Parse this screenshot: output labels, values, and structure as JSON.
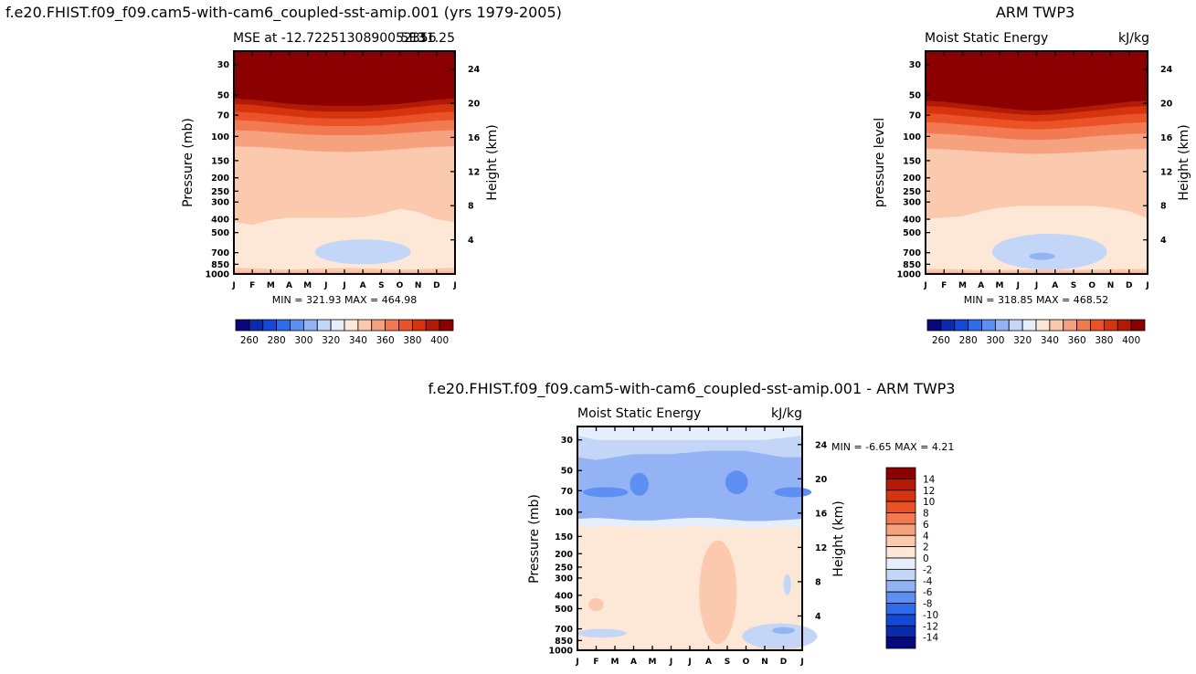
{
  "colors": {
    "mse_palette": [
      "#08087a",
      "#0a2ab0",
      "#1448d8",
      "#2f6cec",
      "#5e8ff2",
      "#93b3f4",
      "#c3d6f8",
      "#e6eefb",
      "#fde7d7",
      "#fbc9ae",
      "#f7a27e",
      "#f27a52",
      "#ec5228",
      "#d6340f",
      "#b21a05",
      "#8b0000"
    ],
    "diff_palette": [
      "#08087a",
      "#0a2ab0",
      "#1448d8",
      "#2f6cec",
      "#5e8ff2",
      "#93b3f4",
      "#c3d6f8",
      "#e6eefb",
      "#fde7d7",
      "#fbc9ae",
      "#f7a27e",
      "#f27a52",
      "#ec5228",
      "#d6340f",
      "#b21a05",
      "#8b0000"
    ]
  },
  "main_title": "f.e20.FHIST.f09_f09.cam5-with-cam6_coupled-sst-amip.001 (yrs 1979-2005)",
  "obs_title": "ARM TWP3",
  "diff_title": "f.e20.FHIST.f09_f09.cam5-with-cam6_coupled-sst-amip.001 - ARM TWP3",
  "chart_data": [
    {
      "id": "model",
      "type": "heatmap",
      "title_left": "MSE at -12.7225130890052356",
      "title_right": "131.25",
      "title_overlap": "5E3",
      "ylabel": "Pressure (mb)",
      "ylabel_right": "Height (km)",
      "x_ticklabels": [
        "J",
        "F",
        "M",
        "A",
        "M",
        "J",
        "J",
        "A",
        "S",
        "O",
        "N",
        "D",
        "J"
      ],
      "y_ticks": [
        30,
        50,
        70,
        100,
        150,
        200,
        250,
        300,
        400,
        500,
        700,
        850,
        1000
      ],
      "y_ticklabels": [
        "30",
        "50",
        "70",
        "100",
        "150",
        "200",
        "250",
        "300",
        "400",
        "500",
        "700",
        "850",
        "1000"
      ],
      "ylim": [
        24,
        1000
      ],
      "height_ticks": [
        24,
        20,
        16,
        12,
        8,
        4
      ],
      "height_ticklabels": [
        "24",
        "20",
        "16",
        "12",
        "8",
        "4"
      ],
      "stats": "MIN = 321.93 MAX = 464.98",
      "min": 321.93,
      "max": 464.98,
      "levels": [
        260,
        270,
        280,
        290,
        300,
        310,
        320,
        330,
        340,
        350,
        360,
        370,
        380,
        390,
        400
      ],
      "colorbar_labels": [
        "260",
        "280",
        "300",
        "320",
        "340",
        "360",
        "380",
        "400"
      ],
      "bands": [
        {
          "label": "400+",
          "color_index": 15,
          "lower_p": [
            53,
            54,
            56,
            58,
            59,
            60,
            60,
            60,
            59,
            58,
            56,
            54,
            53
          ]
        },
        {
          "label": "390-400",
          "color_index": 14,
          "lower_p": [
            58,
            59,
            61,
            63,
            65,
            66,
            66,
            66,
            65,
            63,
            61,
            59,
            58
          ]
        },
        {
          "label": "380-390",
          "color_index": 13,
          "lower_p": [
            66,
            67,
            69,
            71,
            73,
            74,
            74,
            74,
            73,
            71,
            69,
            67,
            66
          ]
        },
        {
          "label": "370-380",
          "color_index": 12,
          "lower_p": [
            76,
            77,
            79,
            81,
            83,
            84,
            84,
            84,
            83,
            81,
            79,
            77,
            76
          ]
        },
        {
          "label": "360-370",
          "color_index": 11,
          "lower_p": [
            90,
            91,
            93,
            95,
            97,
            98,
            98,
            98,
            97,
            95,
            93,
            91,
            90
          ]
        },
        {
          "label": "350-360",
          "color_index": 10,
          "lower_p": [
            118,
            119,
            121,
            124,
            127,
            129,
            130,
            129,
            127,
            124,
            121,
            119,
            118
          ]
        },
        {
          "label": "340-350",
          "color_index": 9,
          "lower_p": [
            420,
            440,
            405,
            390,
            390,
            390,
            390,
            385,
            365,
            335,
            355,
            400,
            420
          ]
        },
        {
          "label": "330-340",
          "color_index": 8,
          "lower_p": [
            900,
            910,
            920,
            930,
            920,
            910,
            905,
            910,
            920,
            930,
            925,
            910,
            900
          ]
        }
      ],
      "blobs": [
        {
          "color_index": 6,
          "center_month": 7.0,
          "center_p": 660,
          "half_months": 2.6,
          "p_top": 560,
          "p_bot": 850
        }
      ],
      "surface_value": 345
    },
    {
      "id": "obs",
      "type": "heatmap",
      "title_left": "Moist Static Energy",
      "title_right": "kJ/kg",
      "ylabel": "pressure level",
      "ylabel_right": "Height (km)",
      "x_ticklabels": [
        "J",
        "F",
        "M",
        "A",
        "M",
        "J",
        "J",
        "A",
        "S",
        "O",
        "N",
        "D",
        "J"
      ],
      "y_ticks": [
        30,
        50,
        70,
        100,
        150,
        200,
        250,
        300,
        400,
        500,
        700,
        850,
        1000
      ],
      "y_ticklabels": [
        "30",
        "50",
        "70",
        "100",
        "150",
        "200",
        "250",
        "300",
        "400",
        "500",
        "700",
        "850",
        "1000"
      ],
      "ylim": [
        24,
        1000
      ],
      "height_ticks": [
        24,
        20,
        16,
        12,
        8,
        4
      ],
      "height_ticklabels": [
        "24",
        "20",
        "16",
        "12",
        "8",
        "4"
      ],
      "stats": "MIN = 318.85 MAX = 468.52",
      "min": 318.85,
      "max": 468.52,
      "levels": [
        260,
        270,
        280,
        290,
        300,
        310,
        320,
        330,
        340,
        350,
        360,
        370,
        380,
        390,
        400
      ],
      "colorbar_labels": [
        "260",
        "280",
        "300",
        "320",
        "340",
        "360",
        "380",
        "400"
      ],
      "bands": [
        {
          "label": "400+",
          "color_index": 15,
          "lower_p": [
            55,
            56,
            58,
            60,
            62,
            64,
            65,
            64,
            62,
            60,
            58,
            56,
            55
          ]
        },
        {
          "label": "390-400",
          "color_index": 14,
          "lower_p": [
            60,
            61,
            63,
            65,
            67,
            69,
            70,
            69,
            67,
            65,
            63,
            61,
            60
          ]
        },
        {
          "label": "380-390",
          "color_index": 13,
          "lower_p": [
            68,
            69,
            71,
            73,
            75,
            77,
            78,
            77,
            75,
            73,
            71,
            69,
            68
          ]
        },
        {
          "label": "370-380",
          "color_index": 12,
          "lower_p": [
            79,
            80,
            82,
            84,
            86,
            88,
            89,
            88,
            86,
            84,
            82,
            80,
            79
          ]
        },
        {
          "label": "360-370",
          "color_index": 11,
          "lower_p": [
            95,
            96,
            98,
            100,
            103,
            105,
            106,
            105,
            103,
            100,
            98,
            96,
            95
          ]
        },
        {
          "label": "350-360",
          "color_index": 10,
          "lower_p": [
            123,
            124,
            126,
            129,
            131,
            133,
            134,
            133,
            131,
            129,
            126,
            124,
            123
          ]
        },
        {
          "label": "340-350",
          "color_index": 9,
          "lower_p": [
            395,
            390,
            380,
            350,
            330,
            320,
            320,
            320,
            320,
            320,
            330,
            350,
            395
          ]
        },
        {
          "label": "330-340",
          "color_index": 8,
          "lower_p": [
            920,
            920,
            925,
            935,
            935,
            930,
            925,
            930,
            935,
            930,
            925,
            920,
            920
          ]
        }
      ],
      "blobs": [
        {
          "color_index": 6,
          "center_month": 6.7,
          "center_p": 650,
          "half_months": 3.1,
          "p_top": 510,
          "p_bot": 930
        },
        {
          "color_index": 5,
          "center_month": 6.3,
          "center_p": 750,
          "half_months": 0.7,
          "p_top": 700,
          "p_bot": 790
        }
      ],
      "surface_value": 345
    },
    {
      "id": "diff",
      "type": "heatmap",
      "title_left": "Moist Static Energy",
      "title_right": "kJ/kg",
      "ylabel": "Pressure (mb)",
      "ylabel_right": "Height (km)",
      "x_ticklabels": [
        "J",
        "F",
        "M",
        "A",
        "M",
        "J",
        "J",
        "A",
        "S",
        "O",
        "N",
        "D",
        "J"
      ],
      "y_ticks": [
        30,
        50,
        70,
        100,
        150,
        200,
        250,
        300,
        400,
        500,
        700,
        850,
        1000
      ],
      "y_ticklabels": [
        "30",
        "50",
        "70",
        "100",
        "150",
        "200",
        "250",
        "300",
        "400",
        "500",
        "700",
        "850",
        "1000"
      ],
      "ylim": [
        24,
        1000
      ],
      "height_ticks": [
        24,
        20,
        16,
        12,
        8,
        4
      ],
      "height_ticklabels": [
        "24",
        "20",
        "16",
        "12",
        "8",
        "4"
      ],
      "stats": "MIN = -6.65 MAX = 4.21",
      "min": -6.65,
      "max": 4.21,
      "levels": [
        -14,
        -12,
        -10,
        -8,
        -6,
        -4,
        -2,
        0,
        2,
        4,
        6,
        8,
        10,
        12,
        14
      ],
      "colorbar_labels": [
        "14",
        "12",
        "10",
        "8",
        "6",
        "4",
        "2",
        "0",
        "-2",
        "-4",
        "-6",
        "-8",
        "-10",
        "-12",
        "-14"
      ],
      "bands": [
        {
          "label": "-2 to 0 upper",
          "color_index": 7,
          "lower_p": [
            28,
            30,
            30,
            30,
            30,
            30,
            30,
            30,
            30,
            30,
            30,
            29,
            28
          ]
        },
        {
          "label": "-4 to -2 upper",
          "color_index": 6,
          "lower_p": [
            40,
            42,
            40,
            38,
            38,
            38,
            37,
            36,
            36,
            36,
            38,
            40,
            40
          ]
        },
        {
          "label": "-6 to -4",
          "color_index": 5,
          "lower_p": [
            112,
            110,
            112,
            115,
            115,
            112,
            110,
            110,
            113,
            116,
            116,
            114,
            112
          ]
        },
        {
          "label": "-2 to 0 lower",
          "color_index": 7,
          "lower_p": [
            128,
            127,
            126,
            128,
            129,
            128,
            126,
            127,
            129,
            130,
            130,
            128,
            128
          ]
        }
      ],
      "blobs": [
        {
          "color_index": 4,
          "center_month": 1.5,
          "center_p": 72,
          "half_months": 1.2,
          "p_top": 66,
          "p_bot": 78
        },
        {
          "color_index": 4,
          "center_month": 3.3,
          "center_p": 64,
          "half_months": 0.5,
          "p_top": 52,
          "p_bot": 76
        },
        {
          "color_index": 4,
          "center_month": 8.5,
          "center_p": 60,
          "half_months": 0.6,
          "p_top": 50,
          "p_bot": 74
        },
        {
          "color_index": 4,
          "center_month": 11.5,
          "center_p": 72,
          "half_months": 1.0,
          "p_top": 66,
          "p_bot": 78
        },
        {
          "color_index": 9,
          "center_month": 7.5,
          "center_p": 420,
          "half_months": 1.0,
          "p_top": 160,
          "p_bot": 900
        },
        {
          "color_index": 9,
          "center_month": 1.0,
          "center_p": 460,
          "half_months": 0.4,
          "p_top": 420,
          "p_bot": 520
        },
        {
          "color_index": 6,
          "center_month": 1.3,
          "center_p": 750,
          "half_months": 1.3,
          "p_top": 700,
          "p_bot": 810
        },
        {
          "color_index": 6,
          "center_month": 10.8,
          "center_p": 820,
          "half_months": 2.0,
          "p_top": 640,
          "p_bot": 980
        },
        {
          "color_index": 5,
          "center_month": 11.0,
          "center_p": 720,
          "half_months": 0.6,
          "p_top": 680,
          "p_bot": 760
        },
        {
          "color_index": 6,
          "center_month": 11.2,
          "center_p": 320,
          "half_months": 0.2,
          "p_top": 280,
          "p_bot": 400
        }
      ],
      "surface_value": 1
    }
  ]
}
